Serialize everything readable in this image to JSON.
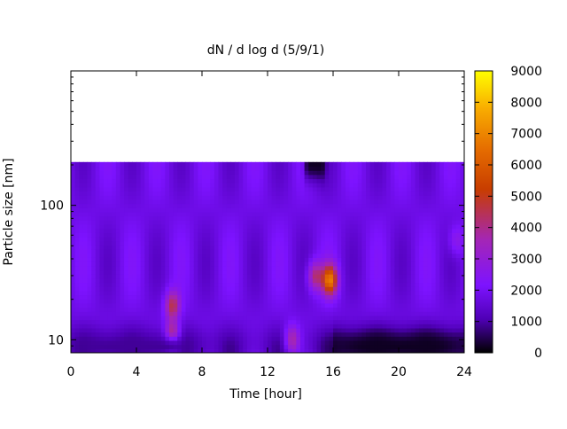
{
  "chart_data": {
    "type": "heatmap",
    "title": "dN / d log d (5/9/1)",
    "xlabel": "Time [hour]",
    "ylabel": "Particle size [nm]",
    "x_range": [
      0,
      24
    ],
    "x_ticks": [
      0,
      4,
      8,
      12,
      16,
      20,
      24
    ],
    "y_scale": "log",
    "y_range": [
      8,
      1000
    ],
    "y_ticks": [
      10,
      100
    ],
    "data_y_range": [
      8,
      210
    ],
    "colorbar": {
      "range": [
        0,
        9000
      ],
      "ticks": [
        0,
        1000,
        2000,
        3000,
        4000,
        5000,
        6000,
        7000,
        8000,
        9000
      ],
      "colors": [
        "#000000",
        "#4f00b6",
        "#7d13ff",
        "#a426b6",
        "#c83d00",
        "#e56c00",
        "#f9ae00",
        "#ffff00"
      ]
    },
    "heatmap_summary": {
      "background_level": 1800,
      "hotspots": [
        {
          "time_hour": 6.2,
          "size_nm": 10,
          "value": 8000
        },
        {
          "time_hour": 6.2,
          "size_nm": 18,
          "value": 4500
        },
        {
          "time_hour": 15.8,
          "size_nm": 28,
          "value": 6500
        },
        {
          "time_hour": 14.9,
          "size_nm": 30,
          "value": 4200
        },
        {
          "time_hour": 13.5,
          "size_nm": 10,
          "value": 4200
        },
        {
          "time_hour": 23.5,
          "size_nm": 55,
          "value": 2900
        }
      ],
      "low_regions": [
        {
          "time_range": [
            14.5,
            15.3
          ],
          "size_nm": 200,
          "value": 200
        },
        {
          "time_range": [
            16,
            24
          ],
          "size_nm": 9,
          "value": 200
        },
        {
          "time_range": [
            0,
            8
          ],
          "size_nm": 9,
          "value": 900
        }
      ]
    }
  }
}
